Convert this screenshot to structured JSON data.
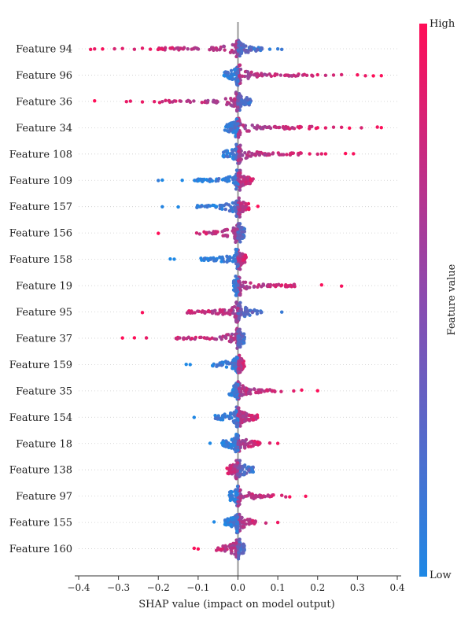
{
  "chart_data": {
    "type": "scatter",
    "subtype": "shap-beeswarm",
    "title": "",
    "xlabel": "SHAP value (impact on model output)",
    "ylabel": "",
    "xlim": [
      -0.4,
      0.4
    ],
    "xticks": [
      -0.4,
      -0.3,
      -0.2,
      -0.1,
      0.0,
      0.1,
      0.2,
      0.3,
      0.4
    ],
    "xtick_labels": [
      "−0.4",
      "−0.3",
      "−0.2",
      "−0.1",
      "0.0",
      "0.1",
      "0.2",
      "0.3",
      "0.4"
    ],
    "grid": false,
    "colors": {
      "high": "#ff0d57",
      "low": "#1e88e5",
      "zero_line": "#999999"
    },
    "colorbar": {
      "label": "Feature value",
      "high_label": "High",
      "low_label": "Low"
    },
    "features": [
      {
        "name": "Feature 94",
        "min": -0.37,
        "max": 0.11,
        "high_side": "neg",
        "outliers": [
          -0.37,
          -0.36,
          -0.34,
          -0.31,
          -0.29,
          -0.26,
          -0.24,
          -0.22,
          -0.19,
          -0.17,
          0.06,
          0.08,
          0.1,
          0.11
        ]
      },
      {
        "name": "Feature 96",
        "min": -0.07,
        "max": 0.36,
        "high_side": "pos",
        "outliers": [
          0.2,
          0.22,
          0.24,
          0.26,
          0.3,
          0.32,
          0.34,
          0.36
        ]
      },
      {
        "name": "Feature 36",
        "min": -0.36,
        "max": 0.06,
        "high_side": "neg",
        "outliers": [
          -0.36,
          -0.28,
          -0.27,
          -0.24,
          -0.21,
          -0.19
        ]
      },
      {
        "name": "Feature 34",
        "min": -0.06,
        "max": 0.36,
        "high_side": "pos",
        "outliers": [
          0.2,
          0.22,
          0.24,
          0.26,
          0.28,
          0.31,
          0.35,
          0.36
        ]
      },
      {
        "name": "Feature 108",
        "min": -0.07,
        "max": 0.29,
        "high_side": "pos",
        "outliers": [
          0.18,
          0.2,
          0.21,
          0.22,
          0.27,
          0.29
        ]
      },
      {
        "name": "Feature 109",
        "min": -0.2,
        "max": 0.07,
        "high_side": "pos",
        "outliers": [
          -0.2,
          -0.19,
          -0.14
        ]
      },
      {
        "name": "Feature 157",
        "min": -0.19,
        "max": 0.05,
        "high_side": "pos",
        "outliers": [
          -0.19,
          -0.15,
          0.05
        ]
      },
      {
        "name": "Feature 156",
        "min": -0.2,
        "max": 0.03,
        "high_side": "neg",
        "outliers": [
          -0.2
        ]
      },
      {
        "name": "Feature 158",
        "min": -0.17,
        "max": 0.04,
        "high_side": "pos",
        "outliers": [
          -0.17,
          -0.16
        ]
      },
      {
        "name": "Feature 19",
        "min": -0.02,
        "max": 0.26,
        "high_side": "pos",
        "outliers": [
          0.09,
          0.11,
          0.12,
          0.14,
          0.21,
          0.26
        ]
      },
      {
        "name": "Feature 95",
        "min": -0.24,
        "max": 0.11,
        "high_side": "neg",
        "outliers": [
          -0.24,
          0.11
        ]
      },
      {
        "name": "Feature 37",
        "min": -0.29,
        "max": 0.03,
        "high_side": "neg",
        "outliers": [
          -0.29,
          -0.26,
          -0.23
        ]
      },
      {
        "name": "Feature 159",
        "min": -0.13,
        "max": 0.03,
        "high_side": "pos",
        "outliers": [
          -0.13,
          -0.12
        ]
      },
      {
        "name": "Feature 35",
        "min": -0.04,
        "max": 0.2,
        "high_side": "pos",
        "outliers": [
          0.14,
          0.16,
          0.2
        ]
      },
      {
        "name": "Feature 154",
        "min": -0.11,
        "max": 0.09,
        "high_side": "pos",
        "outliers": [
          -0.11
        ]
      },
      {
        "name": "Feature 18",
        "min": -0.07,
        "max": 0.1,
        "high_side": "pos",
        "outliers": [
          -0.07,
          -0.04,
          0.08,
          0.1
        ]
      },
      {
        "name": "Feature 138",
        "min": -0.05,
        "max": 0.07,
        "high_side": "neg",
        "outliers": []
      },
      {
        "name": "Feature 97",
        "min": -0.04,
        "max": 0.17,
        "high_side": "pos",
        "outliers": [
          0.11,
          0.12,
          0.13,
          0.17
        ]
      },
      {
        "name": "Feature 155",
        "min": -0.06,
        "max": 0.1,
        "high_side": "pos",
        "outliers": [
          -0.06,
          0.07,
          0.1
        ]
      },
      {
        "name": "Feature 160",
        "min": -0.11,
        "max": 0.03,
        "high_side": "neg",
        "outliers": [
          -0.11,
          -0.1
        ]
      }
    ]
  }
}
